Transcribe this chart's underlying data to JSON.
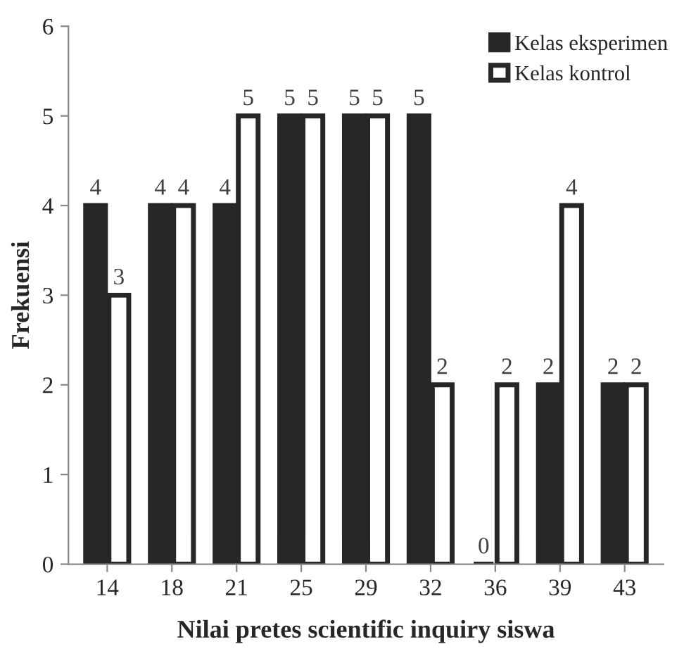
{
  "chart_data": {
    "type": "bar",
    "xlabel": "Nilai pretes scientific inquiry siswa",
    "ylabel": "Frekuensi",
    "categories": [
      "14",
      "18",
      "21",
      "25",
      "29",
      "32",
      "36",
      "39",
      "43"
    ],
    "series": [
      {
        "name": "Kelas eksperimen",
        "color": "#262626",
        "values": [
          4,
          4,
          4,
          5,
          5,
          5,
          0,
          2,
          2
        ]
      },
      {
        "name": "Kelas kontrol",
        "color": "#ffffff",
        "values": [
          3,
          4,
          5,
          5,
          5,
          2,
          2,
          4,
          2
        ]
      }
    ],
    "ylim": [
      0,
      6
    ],
    "yticks": [
      0,
      1,
      2,
      3,
      4,
      5,
      6
    ],
    "data_labels": true,
    "grid": false,
    "legend": "top right"
  }
}
